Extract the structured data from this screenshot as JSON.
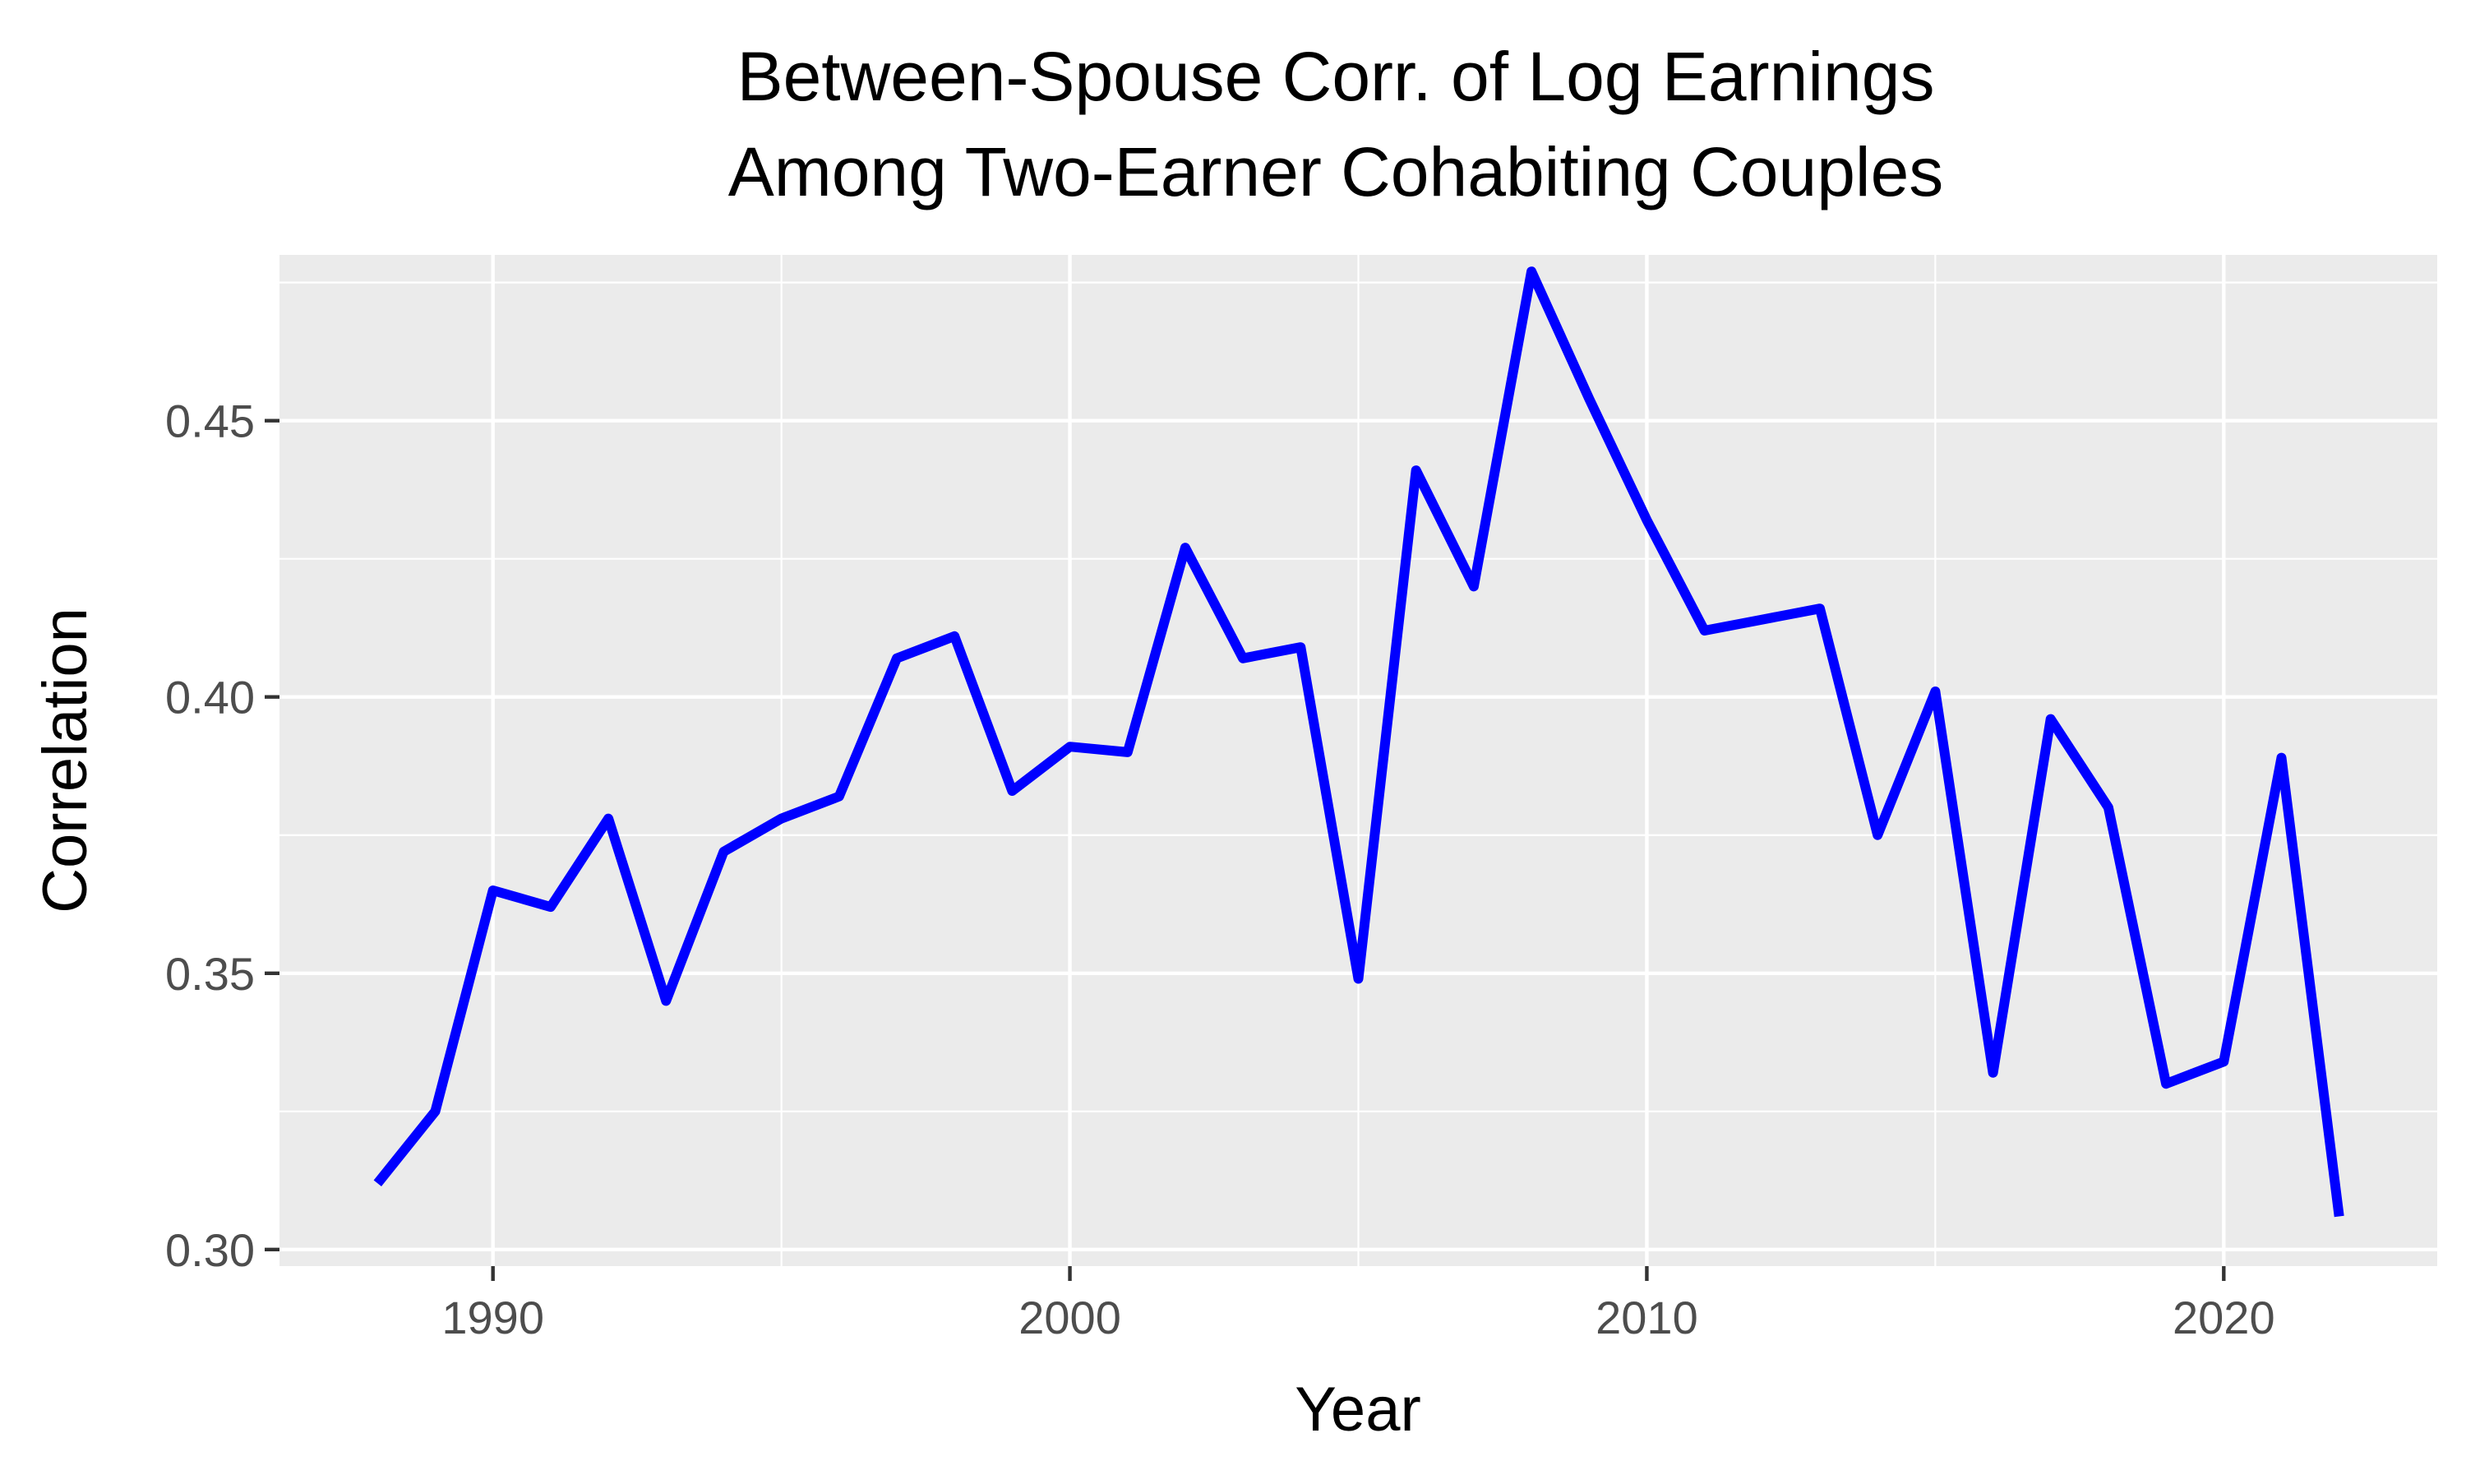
{
  "chart_data": {
    "type": "line",
    "title": "Between-Spouse Corr. of Log Earnings",
    "subtitle": "Among Two-Earner Cohabiting Couples",
    "xlabel": "Year",
    "ylabel": "Correlation",
    "xlim": [
      1986.3,
      2023.7
    ],
    "ylim": [
      0.297,
      0.48
    ],
    "x_ticks": [
      1990,
      2000,
      2010,
      2020
    ],
    "x_tick_labels": [
      "1990",
      "2000",
      "2010",
      "2020"
    ],
    "x_minor_ticks": [
      1995,
      2005,
      2015
    ],
    "y_ticks": [
      0.3,
      0.35,
      0.4,
      0.45
    ],
    "y_tick_labels": [
      "0.30",
      "0.35",
      "0.40",
      "0.45"
    ],
    "y_minor_ticks": [
      0.325,
      0.375,
      0.425,
      0.475
    ],
    "grid": true,
    "panel_color": "#ebebeb",
    "grid_color": "#ffffff",
    "series": [
      {
        "color": "#0000ff",
        "x": [
          1988,
          1989,
          1990,
          1991,
          1992,
          1993,
          1994,
          1995,
          1996,
          1997,
          1998,
          1999,
          2000,
          2001,
          2002,
          2003,
          2004,
          2005,
          2006,
          2007,
          2008,
          2009,
          2010,
          2011,
          2012,
          2013,
          2014,
          2015,
          2016,
          2017,
          2018,
          2019,
          2020,
          2021,
          2022
        ],
        "values": [
          0.312,
          0.325,
          0.365,
          0.362,
          0.378,
          0.345,
          0.372,
          0.378,
          0.382,
          0.407,
          0.411,
          0.383,
          0.391,
          0.39,
          0.427,
          0.407,
          0.409,
          0.349,
          0.441,
          0.42,
          0.477,
          0.454,
          0.432,
          0.412,
          0.414,
          0.416,
          0.375,
          0.401,
          0.332,
          0.396,
          0.38,
          0.33,
          0.334,
          0.389,
          0.306
        ]
      }
    ]
  }
}
